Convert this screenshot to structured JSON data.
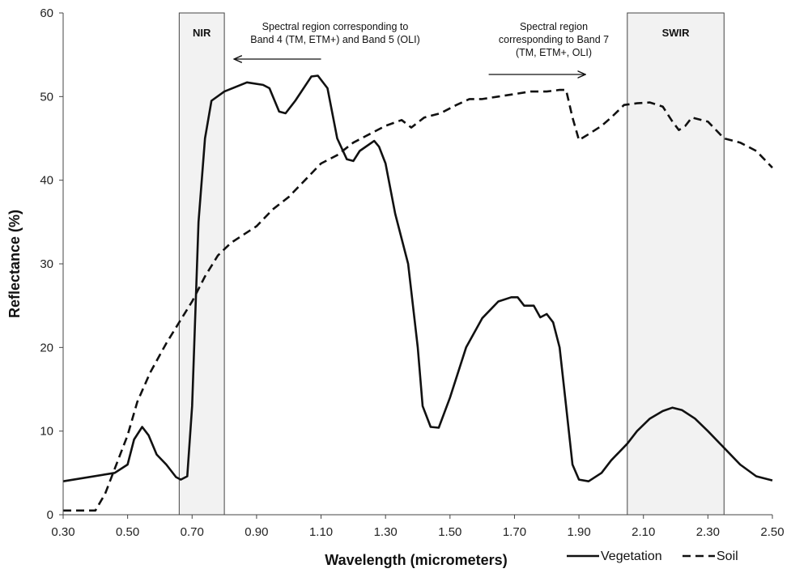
{
  "chart_data": {
    "type": "line",
    "title": "",
    "xlabel": "Wavelength (micrometers)",
    "ylabel": "Reflectance (%)",
    "xlim": [
      0.3,
      2.5
    ],
    "ylim": [
      0,
      60
    ],
    "xticks": [
      "0.30",
      "0.50",
      "0.70",
      "0.90",
      "1.10",
      "1.30",
      "1.50",
      "1.70",
      "1.90",
      "2.10",
      "2.30",
      "2.50"
    ],
    "yticks": [
      "0",
      "10",
      "20",
      "30",
      "40",
      "50",
      "60"
    ],
    "grid": false,
    "legend_position": "bottom-right",
    "series": [
      {
        "name": "Vegetation",
        "style": "solid",
        "color": "#111111",
        "points": [
          [
            0.3,
            4.0
          ],
          [
            0.46,
            5.0
          ],
          [
            0.5,
            6.0
          ],
          [
            0.52,
            9.0
          ],
          [
            0.545,
            10.5
          ],
          [
            0.565,
            9.5
          ],
          [
            0.59,
            7.2
          ],
          [
            0.62,
            6.0
          ],
          [
            0.65,
            4.5
          ],
          [
            0.665,
            4.2
          ],
          [
            0.685,
            4.6
          ],
          [
            0.7,
            13.0
          ],
          [
            0.72,
            35.0
          ],
          [
            0.74,
            45.0
          ],
          [
            0.76,
            49.5
          ],
          [
            0.8,
            50.6
          ],
          [
            0.87,
            51.7
          ],
          [
            0.92,
            51.4
          ],
          [
            0.94,
            51.0
          ],
          [
            0.97,
            48.2
          ],
          [
            0.99,
            48.0
          ],
          [
            1.02,
            49.5
          ],
          [
            1.07,
            52.4
          ],
          [
            1.09,
            52.5
          ],
          [
            1.12,
            51.0
          ],
          [
            1.15,
            45.0
          ],
          [
            1.18,
            42.5
          ],
          [
            1.2,
            42.3
          ],
          [
            1.22,
            43.5
          ],
          [
            1.265,
            44.7
          ],
          [
            1.28,
            44.0
          ],
          [
            1.3,
            42.0
          ],
          [
            1.33,
            36.0
          ],
          [
            1.37,
            30.0
          ],
          [
            1.4,
            20.0
          ],
          [
            1.415,
            13.0
          ],
          [
            1.44,
            10.5
          ],
          [
            1.465,
            10.4
          ],
          [
            1.5,
            14.0
          ],
          [
            1.55,
            20.0
          ],
          [
            1.6,
            23.5
          ],
          [
            1.65,
            25.5
          ],
          [
            1.69,
            26.0
          ],
          [
            1.71,
            26.0
          ],
          [
            1.73,
            25.0
          ],
          [
            1.76,
            25.0
          ],
          [
            1.78,
            23.6
          ],
          [
            1.8,
            24.0
          ],
          [
            1.82,
            23.0
          ],
          [
            1.84,
            20.0
          ],
          [
            1.86,
            13.0
          ],
          [
            1.88,
            6.0
          ],
          [
            1.9,
            4.2
          ],
          [
            1.93,
            4.0
          ],
          [
            1.97,
            5.0
          ],
          [
            2.0,
            6.5
          ],
          [
            2.05,
            8.5
          ],
          [
            2.08,
            10.0
          ],
          [
            2.12,
            11.5
          ],
          [
            2.16,
            12.4
          ],
          [
            2.19,
            12.8
          ],
          [
            2.22,
            12.5
          ],
          [
            2.26,
            11.5
          ],
          [
            2.3,
            10.0
          ],
          [
            2.35,
            8.0
          ],
          [
            2.4,
            6.0
          ],
          [
            2.45,
            4.6
          ],
          [
            2.5,
            4.1
          ]
        ]
      },
      {
        "name": "Soil",
        "style": "dashed",
        "color": "#111111",
        "points": [
          [
            0.3,
            0.5
          ],
          [
            0.33,
            0.5
          ],
          [
            0.37,
            0.5
          ],
          [
            0.4,
            0.5
          ],
          [
            0.43,
            2.5
          ],
          [
            0.46,
            5.5
          ],
          [
            0.5,
            9.5
          ],
          [
            0.53,
            13.5
          ],
          [
            0.57,
            17.0
          ],
          [
            0.62,
            20.5
          ],
          [
            0.66,
            23.0
          ],
          [
            0.7,
            25.5
          ],
          [
            0.74,
            28.5
          ],
          [
            0.78,
            31.0
          ],
          [
            0.82,
            32.5
          ],
          [
            0.86,
            33.5
          ],
          [
            0.9,
            34.5
          ],
          [
            0.95,
            36.5
          ],
          [
            1.0,
            38.0
          ],
          [
            1.05,
            40.0
          ],
          [
            1.1,
            42.0
          ],
          [
            1.15,
            43.0
          ],
          [
            1.2,
            44.5
          ],
          [
            1.25,
            45.5
          ],
          [
            1.3,
            46.5
          ],
          [
            1.35,
            47.2
          ],
          [
            1.38,
            46.3
          ],
          [
            1.42,
            47.5
          ],
          [
            1.47,
            48.0
          ],
          [
            1.52,
            49.0
          ],
          [
            1.56,
            49.7
          ],
          [
            1.6,
            49.7
          ],
          [
            1.65,
            50.0
          ],
          [
            1.7,
            50.3
          ],
          [
            1.75,
            50.6
          ],
          [
            1.8,
            50.6
          ],
          [
            1.84,
            50.8
          ],
          [
            1.86,
            50.8
          ],
          [
            1.88,
            47.5
          ],
          [
            1.9,
            44.8
          ],
          [
            1.93,
            45.5
          ],
          [
            1.97,
            46.5
          ],
          [
            2.0,
            47.5
          ],
          [
            2.04,
            49.0
          ],
          [
            2.08,
            49.2
          ],
          [
            2.12,
            49.3
          ],
          [
            2.16,
            48.8
          ],
          [
            2.19,
            47.0
          ],
          [
            2.21,
            46.0
          ],
          [
            2.23,
            46.5
          ],
          [
            2.25,
            47.5
          ],
          [
            2.3,
            47.0
          ],
          [
            2.35,
            45.0
          ],
          [
            2.4,
            44.5
          ],
          [
            2.45,
            43.5
          ],
          [
            2.5,
            41.5
          ]
        ]
      }
    ],
    "bands": [
      {
        "label": "NIR",
        "x_range": [
          0.66,
          0.8
        ],
        "fill": "#f2f2f2"
      },
      {
        "label": "SWIR",
        "x_range": [
          2.05,
          2.35
        ],
        "fill": "#f2f2f2"
      }
    ],
    "annotations": [
      {
        "id": "band4",
        "lines": [
          "Spectral region corresponding to",
          "Band 4 (TM, ETM+) and Band 5 (OLI)"
        ],
        "arrow": "left",
        "arrow_x_range": [
          0.8,
          1.1
        ]
      },
      {
        "id": "band7",
        "lines": [
          "Spectral region",
          "corresponding to Band 7",
          "(TM, ETM+, OLI)"
        ],
        "arrow": "right",
        "arrow_x_range": [
          1.62,
          1.93
        ]
      }
    ]
  }
}
